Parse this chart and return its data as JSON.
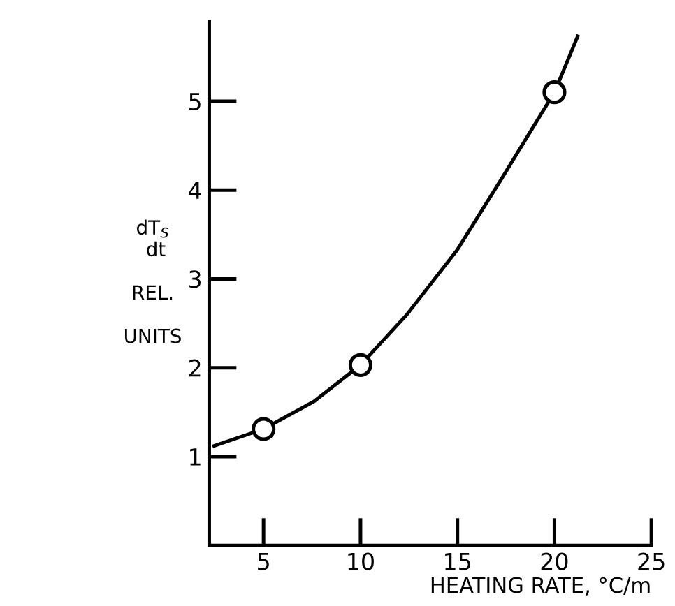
{
  "chart_data": {
    "type": "line",
    "xlabel": "HEATING RATE, °C/m",
    "ylabel": "dT$_{S}$\n dt\n\nREL.\n\nUNITS",
    "xlim": [
      2.2,
      25
    ],
    "xticks": [
      5,
      10,
      15,
      20,
      25
    ],
    "ylim": [
      0,
      5.9
    ],
    "yticks": [
      1,
      2,
      3,
      4,
      5
    ],
    "grid": false,
    "legend": false,
    "series": [
      {
        "color": "#000000",
        "marker": "none",
        "line_style": "solid",
        "x": [
          2.45,
          5,
          7.6,
          10,
          12.4,
          15,
          17.2,
          20,
          21.2
        ],
        "values": [
          1.12,
          1.31,
          1.62,
          2.03,
          2.6,
          3.33,
          4.1,
          5.1,
          5.73
        ]
      },
      {
        "type": "scatter",
        "color": "#000000",
        "marker": "circle",
        "x": [
          5,
          10,
          20
        ],
        "values": [
          1.31,
          2.03,
          5.1
        ]
      }
    ]
  }
}
